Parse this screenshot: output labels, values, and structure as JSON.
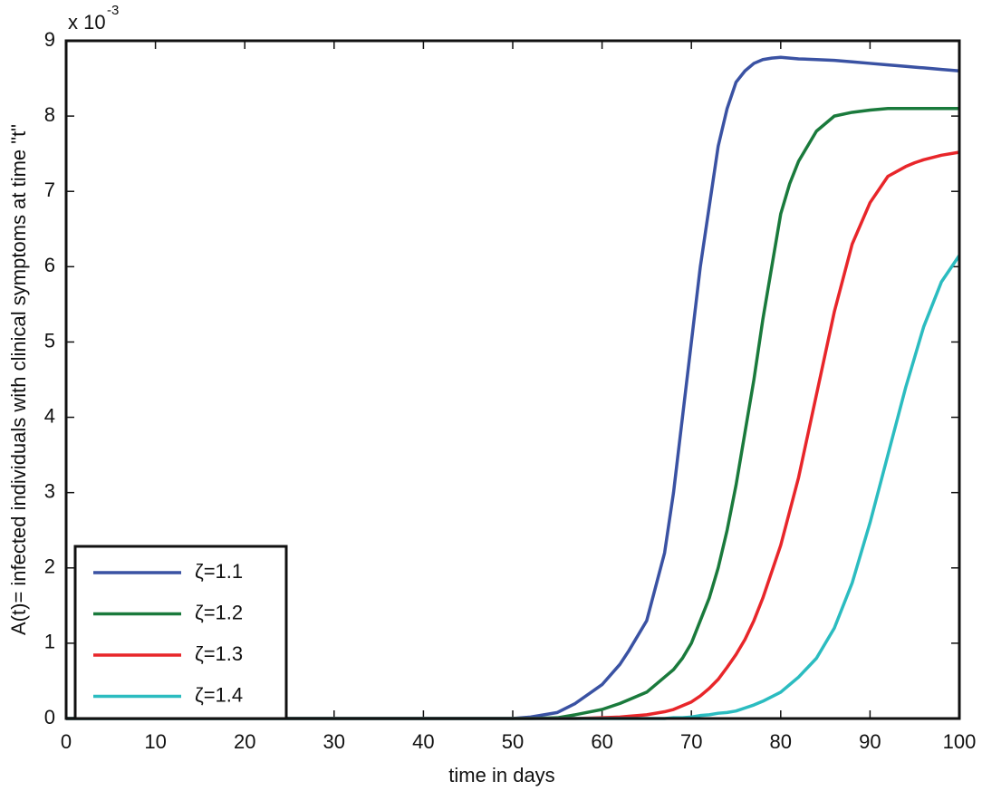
{
  "chart_data": {
    "type": "line",
    "xlabel": "time in days",
    "ylabel": "A(t)= infected individuals with clinical symptoms at time \"t\"",
    "y_multiplier": "x 10",
    "y_multiplier_exponent": "-3",
    "x": [
      0,
      50,
      52,
      55,
      57,
      60,
      62,
      63,
      65,
      67,
      68,
      69,
      70,
      71,
      72,
      73,
      74,
      75,
      76,
      77,
      78,
      79,
      80,
      81,
      82,
      84,
      86,
      88,
      90,
      92,
      94,
      95,
      96,
      98,
      100
    ],
    "series": [
      {
        "name": "ζ=1.1",
        "color": "#3a52a3",
        "values": [
          0,
          0,
          0.02,
          0.08,
          0.2,
          0.45,
          0.72,
          0.9,
          1.3,
          2.2,
          3.0,
          4.0,
          5.0,
          6.0,
          6.8,
          7.6,
          8.1,
          8.45,
          8.6,
          8.7,
          8.75,
          8.77,
          8.78,
          8.77,
          8.76,
          8.75,
          8.74,
          8.72,
          8.7,
          8.68,
          8.66,
          8.65,
          8.64,
          8.62,
          8.6
        ]
      },
      {
        "name": "ζ=1.2",
        "color": "#1a7a3c",
        "values": [
          0,
          0,
          0,
          0.01,
          0.05,
          0.12,
          0.2,
          0.25,
          0.35,
          0.55,
          0.65,
          0.8,
          1.0,
          1.3,
          1.6,
          2.0,
          2.5,
          3.1,
          3.8,
          4.5,
          5.3,
          6.0,
          6.7,
          7.1,
          7.4,
          7.8,
          8.0,
          8.05,
          8.08,
          8.1,
          8.1,
          8.1,
          8.1,
          8.1,
          8.1
        ]
      },
      {
        "name": "ζ=1.3",
        "color": "#e8262a",
        "values": [
          0,
          0,
          0,
          0,
          0,
          0.01,
          0.02,
          0.03,
          0.05,
          0.09,
          0.12,
          0.17,
          0.22,
          0.3,
          0.4,
          0.52,
          0.68,
          0.85,
          1.05,
          1.3,
          1.6,
          1.95,
          2.3,
          2.75,
          3.2,
          4.3,
          5.4,
          6.3,
          6.85,
          7.2,
          7.33,
          7.38,
          7.42,
          7.48,
          7.52
        ]
      },
      {
        "name": "ζ=1.4",
        "color": "#2bbcc0",
        "values": [
          0,
          0,
          0,
          0,
          0,
          0,
          0,
          0,
          0,
          0,
          0.01,
          0.01,
          0.02,
          0.04,
          0.05,
          0.07,
          0.08,
          0.1,
          0.14,
          0.18,
          0.23,
          0.29,
          0.35,
          0.45,
          0.55,
          0.8,
          1.2,
          1.8,
          2.6,
          3.5,
          4.4,
          4.8,
          5.2,
          5.8,
          6.15
        ]
      }
    ],
    "xlim": [
      0,
      100
    ],
    "xticks": [
      0,
      10,
      20,
      30,
      40,
      50,
      60,
      70,
      80,
      90,
      100
    ],
    "ylim": [
      0,
      9
    ],
    "yticks": [
      0,
      1,
      2,
      3,
      4,
      5,
      6,
      7,
      8,
      9
    ],
    "grid": false,
    "legend": "lower left"
  }
}
